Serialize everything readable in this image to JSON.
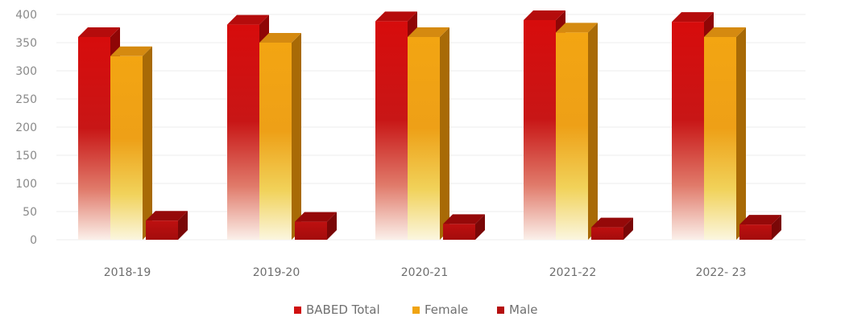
{
  "chart_data": {
    "type": "bar",
    "title": "",
    "xlabel": "",
    "ylabel": "",
    "categories": [
      "2018-19",
      "2019-20",
      "2020-21",
      "2021-22",
      "2022- 23"
    ],
    "series": [
      {
        "name": "BABED Total",
        "values": [
          360,
          382,
          388,
          390,
          387
        ],
        "color": "#d30f0f"
      },
      {
        "name": "Female",
        "values": [
          326,
          350,
          360,
          368,
          360
        ],
        "color": "#f0a413"
      },
      {
        "name": "Male",
        "values": [
          34,
          32,
          28,
          22,
          27
        ],
        "color": "#b80f0f"
      }
    ],
    "ylim": [
      0,
      400
    ],
    "yticks": [
      0,
      50,
      100,
      150,
      200,
      250,
      300,
      350,
      400
    ],
    "grid": true,
    "legend": "bottom"
  }
}
